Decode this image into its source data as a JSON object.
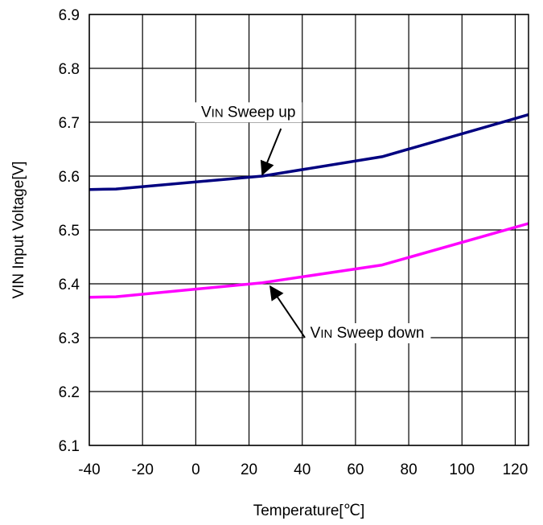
{
  "chart_data": {
    "type": "line",
    "title": "",
    "xlabel": "Temperature[℃]",
    "ylabel": "VIN Input Voltage[V]",
    "xlim": [
      -40,
      125
    ],
    "ylim": [
      6.1,
      6.9
    ],
    "xticks": [
      -40,
      -20,
      0,
      20,
      40,
      60,
      80,
      100,
      120
    ],
    "yticks": [
      6.1,
      6.2,
      6.3,
      6.4,
      6.5,
      6.6,
      6.7,
      6.8,
      6.9
    ],
    "x_tick_labels": [
      "-40",
      "-20",
      "0",
      "20",
      "40",
      "60",
      "80",
      "100",
      "120"
    ],
    "y_tick_labels": [
      "6.1",
      "6.2",
      "6.3",
      "6.4",
      "6.5",
      "6.6",
      "6.7",
      "6.8",
      "6.9"
    ],
    "grid": true,
    "series": [
      {
        "color": "#000080",
        "x": [
          -40,
          -30,
          25,
          70,
          125
        ],
        "y": [
          6.575,
          6.576,
          6.6,
          6.636,
          6.714
        ]
      },
      {
        "color": "#ff00ff",
        "x": [
          -40,
          -30,
          25,
          70,
          125
        ],
        "y": [
          6.375,
          6.376,
          6.402,
          6.435,
          6.512
        ]
      }
    ],
    "annotations": [
      {
        "prefix": "V",
        "sub": "IN",
        "suffix": " Sweep up",
        "text_x": 2,
        "text_y": 6.71,
        "arrow_from": [
          -5,
          6.685
        ],
        "arrow_to": [
          -10,
          6.6
        ]
      },
      {
        "prefix": "V",
        "sub": "IN",
        "suffix": " Sweep down",
        "text_x": 43,
        "text_y": 6.3,
        "arrow_from": [
          -2,
          6.325
        ],
        "arrow_to": [
          -15,
          6.4
        ]
      }
    ]
  }
}
